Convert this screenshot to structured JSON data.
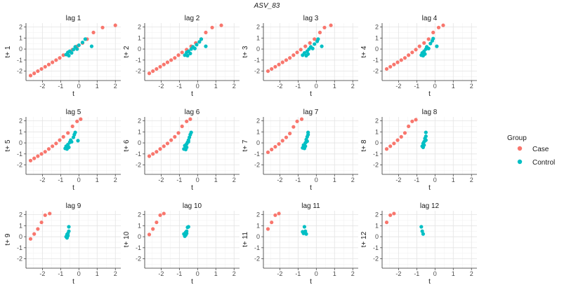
{
  "chart_data": {
    "type": "scatter",
    "title": "ASV_83",
    "xlabel": "t",
    "xlim": [
      -2.9,
      2.3
    ],
    "ylim": [
      -2.85,
      2.35
    ],
    "xticks": [
      -2,
      -1,
      0,
      1,
      2
    ],
    "yticks": [
      -2,
      -1,
      0,
      1,
      2
    ],
    "xtick_labels": [
      "-2",
      "-1",
      "0",
      "1",
      "2"
    ],
    "ytick_labels": [
      "-2",
      "-1",
      "0",
      "1",
      "2"
    ],
    "grid": true,
    "legend": {
      "title": "Group",
      "position": "right",
      "entries": [
        {
          "label": "Case",
          "color": "#F8766D"
        },
        {
          "label": "Control",
          "color": "#00BFC4"
        }
      ]
    },
    "panels": [
      {
        "strip": "lag 1",
        "ylabel": "t+ 1",
        "case": [
          [
            -2.65,
            -2.4
          ],
          [
            -2.45,
            -2.2
          ],
          [
            -2.25,
            -2.0
          ],
          [
            -2.05,
            -1.8
          ],
          [
            -1.85,
            -1.6
          ],
          [
            -1.65,
            -1.4
          ],
          [
            -1.45,
            -1.2
          ],
          [
            -1.25,
            -1.0
          ],
          [
            -1.05,
            -0.8
          ],
          [
            -0.85,
            -0.55
          ],
          [
            -0.6,
            -0.3
          ],
          [
            -0.35,
            -0.05
          ],
          [
            -0.1,
            0.25
          ],
          [
            0.2,
            0.55
          ],
          [
            0.45,
            0.9
          ],
          [
            0.8,
            1.5
          ],
          [
            1.3,
            1.95
          ],
          [
            2.0,
            2.15
          ]
        ],
        "control": [
          [
            -0.7,
            -0.5
          ],
          [
            -0.6,
            -0.3
          ],
          [
            -0.55,
            -0.6
          ],
          [
            -0.5,
            -0.2
          ],
          [
            -0.4,
            -0.35
          ],
          [
            -0.3,
            -0.05
          ],
          [
            -0.2,
            0.2
          ],
          [
            -0.1,
            0.0
          ],
          [
            0.0,
            0.35
          ],
          [
            0.2,
            0.6
          ],
          [
            0.35,
            0.9
          ],
          [
            0.7,
            0.25
          ]
        ]
      },
      {
        "strip": "lag 2",
        "ylabel": "t+ 2",
        "case": [
          [
            -2.65,
            -2.2
          ],
          [
            -2.45,
            -2.0
          ],
          [
            -2.25,
            -1.8
          ],
          [
            -2.05,
            -1.6
          ],
          [
            -1.85,
            -1.4
          ],
          [
            -1.65,
            -1.2
          ],
          [
            -1.45,
            -1.0
          ],
          [
            -1.25,
            -0.8
          ],
          [
            -1.05,
            -0.55
          ],
          [
            -0.85,
            -0.3
          ],
          [
            -0.6,
            -0.05
          ],
          [
            -0.35,
            0.25
          ],
          [
            -0.1,
            0.55
          ],
          [
            0.2,
            0.9
          ],
          [
            0.45,
            1.5
          ],
          [
            0.8,
            1.95
          ],
          [
            1.3,
            2.15
          ]
        ],
        "control": [
          [
            -0.7,
            -0.55
          ],
          [
            -0.6,
            -0.3
          ],
          [
            -0.55,
            -0.6
          ],
          [
            -0.5,
            -0.2
          ],
          [
            -0.4,
            -0.4
          ],
          [
            -0.35,
            0.0
          ],
          [
            -0.25,
            0.2
          ],
          [
            -0.15,
            0.05
          ],
          [
            -0.05,
            0.4
          ],
          [
            0.1,
            0.65
          ],
          [
            0.2,
            0.9
          ],
          [
            0.45,
            0.25
          ]
        ]
      },
      {
        "strip": "lag 3",
        "ylabel": "t+ 3",
        "case": [
          [
            -2.65,
            -2.0
          ],
          [
            -2.45,
            -1.8
          ],
          [
            -2.25,
            -1.6
          ],
          [
            -2.05,
            -1.4
          ],
          [
            -1.85,
            -1.2
          ],
          [
            -1.65,
            -1.0
          ],
          [
            -1.45,
            -0.8
          ],
          [
            -1.25,
            -0.55
          ],
          [
            -1.05,
            -0.3
          ],
          [
            -0.85,
            -0.05
          ],
          [
            -0.6,
            0.25
          ],
          [
            -0.35,
            0.55
          ],
          [
            -0.1,
            0.9
          ],
          [
            0.2,
            1.5
          ],
          [
            0.45,
            1.95
          ],
          [
            0.8,
            2.15
          ]
        ],
        "control": [
          [
            -0.75,
            -0.55
          ],
          [
            -0.65,
            -0.35
          ],
          [
            -0.55,
            -0.6
          ],
          [
            -0.5,
            -0.2
          ],
          [
            -0.45,
            -0.45
          ],
          [
            -0.4,
            0.0
          ],
          [
            -0.3,
            0.2
          ],
          [
            -0.2,
            0.05
          ],
          [
            -0.1,
            0.45
          ],
          [
            0.05,
            0.7
          ],
          [
            0.1,
            0.9
          ],
          [
            0.3,
            0.25
          ]
        ]
      },
      {
        "strip": "lag 4",
        "ylabel": "t+ 4",
        "case": [
          [
            -2.65,
            -1.8
          ],
          [
            -2.45,
            -1.6
          ],
          [
            -2.25,
            -1.4
          ],
          [
            -2.05,
            -1.2
          ],
          [
            -1.85,
            -1.0
          ],
          [
            -1.65,
            -0.8
          ],
          [
            -1.45,
            -0.55
          ],
          [
            -1.25,
            -0.3
          ],
          [
            -1.05,
            -0.05
          ],
          [
            -0.85,
            0.25
          ],
          [
            -0.6,
            0.55
          ],
          [
            -0.35,
            0.9
          ],
          [
            -0.1,
            1.5
          ],
          [
            0.2,
            1.95
          ],
          [
            0.45,
            2.15
          ]
        ],
        "control": [
          [
            -0.75,
            -0.55
          ],
          [
            -0.7,
            -0.35
          ],
          [
            -0.65,
            -0.6
          ],
          [
            -0.6,
            -0.2
          ],
          [
            -0.55,
            -0.45
          ],
          [
            -0.5,
            0.0
          ],
          [
            -0.45,
            0.2
          ],
          [
            -0.35,
            0.05
          ],
          [
            -0.25,
            0.5
          ],
          [
            -0.15,
            0.75
          ],
          [
            -0.1,
            0.95
          ],
          [
            0.1,
            0.25
          ]
        ]
      },
      {
        "strip": "lag 5",
        "ylabel": "t+ 5",
        "case": [
          [
            -2.65,
            -1.6
          ],
          [
            -2.45,
            -1.4
          ],
          [
            -2.25,
            -1.2
          ],
          [
            -2.05,
            -1.0
          ],
          [
            -1.85,
            -0.8
          ],
          [
            -1.65,
            -0.55
          ],
          [
            -1.45,
            -0.3
          ],
          [
            -1.25,
            -0.05
          ],
          [
            -1.05,
            0.25
          ],
          [
            -0.85,
            0.55
          ],
          [
            -0.6,
            0.9
          ],
          [
            -0.35,
            1.5
          ],
          [
            -0.1,
            1.95
          ],
          [
            0.1,
            2.15
          ]
        ],
        "control": [
          [
            -0.75,
            -0.5
          ],
          [
            -0.7,
            -0.3
          ],
          [
            -0.65,
            -0.55
          ],
          [
            -0.6,
            -0.15
          ],
          [
            -0.55,
            -0.4
          ],
          [
            -0.5,
            0.05
          ],
          [
            -0.45,
            0.25
          ],
          [
            -0.4,
            0.1
          ],
          [
            -0.3,
            0.5
          ],
          [
            -0.25,
            0.75
          ],
          [
            -0.2,
            0.95
          ],
          [
            -0.05,
            0.2
          ]
        ]
      },
      {
        "strip": "lag 6",
        "ylabel": "t+ 6",
        "case": [
          [
            -2.65,
            -1.2
          ],
          [
            -2.45,
            -1.0
          ],
          [
            -2.25,
            -0.8
          ],
          [
            -2.05,
            -0.55
          ],
          [
            -1.85,
            -0.3
          ],
          [
            -1.65,
            -0.05
          ],
          [
            -1.45,
            0.25
          ],
          [
            -1.25,
            0.55
          ],
          [
            -1.05,
            0.9
          ],
          [
            -0.85,
            1.5
          ],
          [
            -0.6,
            1.95
          ],
          [
            -0.4,
            2.15
          ]
        ],
        "control": [
          [
            -0.75,
            -0.55
          ],
          [
            -0.7,
            -0.25
          ],
          [
            -0.65,
            -0.6
          ],
          [
            -0.6,
            -0.1
          ],
          [
            -0.6,
            -0.4
          ],
          [
            -0.55,
            0.05
          ],
          [
            -0.5,
            0.25
          ],
          [
            -0.5,
            0.1
          ],
          [
            -0.45,
            0.5
          ],
          [
            -0.4,
            0.75
          ],
          [
            -0.35,
            0.95
          ]
        ]
      },
      {
        "strip": "lag 7",
        "ylabel": "t+ 7",
        "case": [
          [
            -2.65,
            -0.85
          ],
          [
            -2.45,
            -0.6
          ],
          [
            -2.25,
            -0.35
          ],
          [
            -2.05,
            -0.1
          ],
          [
            -1.85,
            0.2
          ],
          [
            -1.65,
            0.5
          ],
          [
            -1.45,
            0.85
          ],
          [
            -1.25,
            1.45
          ],
          [
            -1.05,
            1.95
          ],
          [
            -0.8,
            2.15
          ]
        ],
        "control": [
          [
            -0.75,
            -0.45
          ],
          [
            -0.7,
            -0.2
          ],
          [
            -0.65,
            -0.5
          ],
          [
            -0.6,
            0.0
          ],
          [
            -0.6,
            -0.3
          ],
          [
            -0.55,
            0.1
          ],
          [
            -0.55,
            0.3
          ],
          [
            -0.5,
            0.15
          ],
          [
            -0.5,
            0.55
          ],
          [
            -0.45,
            0.75
          ],
          [
            -0.45,
            0.95
          ]
        ]
      },
      {
        "strip": "lag 8",
        "ylabel": "t+ 8",
        "case": [
          [
            -2.65,
            -0.55
          ],
          [
            -2.45,
            -0.3
          ],
          [
            -2.25,
            -0.05
          ],
          [
            -2.05,
            0.25
          ],
          [
            -1.85,
            0.55
          ],
          [
            -1.65,
            0.9
          ],
          [
            -1.45,
            1.5
          ],
          [
            -1.25,
            1.95
          ],
          [
            -1.05,
            2.1
          ]
        ],
        "control": [
          [
            -0.7,
            -0.3
          ],
          [
            -0.65,
            -0.05
          ],
          [
            -0.65,
            -0.4
          ],
          [
            -0.6,
            0.1
          ],
          [
            -0.6,
            -0.2
          ],
          [
            -0.55,
            0.2
          ],
          [
            -0.55,
            0.4
          ],
          [
            -0.5,
            0.25
          ],
          [
            -0.5,
            0.6
          ],
          [
            -0.5,
            0.95
          ]
        ]
      },
      {
        "strip": "lag 9",
        "ylabel": "t+ 9",
        "case": [
          [
            -2.65,
            -0.2
          ],
          [
            -2.45,
            0.25
          ],
          [
            -2.25,
            0.7
          ],
          [
            -2.05,
            1.3
          ],
          [
            -1.85,
            1.95
          ],
          [
            -1.6,
            2.1
          ]
        ],
        "control": [
          [
            -0.7,
            0.0
          ],
          [
            -0.65,
            0.2
          ],
          [
            -0.65,
            -0.1
          ],
          [
            -0.6,
            0.3
          ],
          [
            -0.6,
            0.1
          ],
          [
            -0.55,
            0.5
          ],
          [
            -0.55,
            0.9
          ]
        ]
      },
      {
        "strip": "lag 10",
        "ylabel": "t+ 10",
        "case": [
          [
            -2.65,
            0.2
          ],
          [
            -2.45,
            0.7
          ],
          [
            -2.25,
            1.3
          ],
          [
            -2.05,
            1.95
          ],
          [
            -1.85,
            2.1
          ]
        ],
        "control": [
          [
            -0.75,
            0.25
          ],
          [
            -0.7,
            0.05
          ],
          [
            -0.65,
            0.4
          ],
          [
            -0.65,
            0.15
          ],
          [
            -0.6,
            0.5
          ],
          [
            -0.6,
            0.3
          ],
          [
            -0.55,
            0.85
          ],
          [
            -0.5,
            0.9
          ]
        ]
      },
      {
        "strip": "lag 11",
        "ylabel": "t+ 11",
        "case": [
          [
            -2.65,
            0.7
          ],
          [
            -2.45,
            1.3
          ],
          [
            -2.25,
            1.95
          ],
          [
            -2.05,
            2.1
          ]
        ],
        "control": [
          [
            -0.75,
            0.45
          ],
          [
            -0.7,
            0.3
          ],
          [
            -0.65,
            0.9
          ],
          [
            -0.6,
            0.5
          ],
          [
            -0.55,
            0.25
          ]
        ]
      },
      {
        "strip": "lag 12",
        "ylabel": "t+ 12",
        "case": [
          [
            -2.65,
            1.3
          ],
          [
            -2.45,
            1.95
          ],
          [
            -2.25,
            2.1
          ]
        ],
        "control": [
          [
            -0.75,
            0.9
          ],
          [
            -0.7,
            0.5
          ],
          [
            -0.65,
            0.25
          ]
        ]
      }
    ]
  }
}
